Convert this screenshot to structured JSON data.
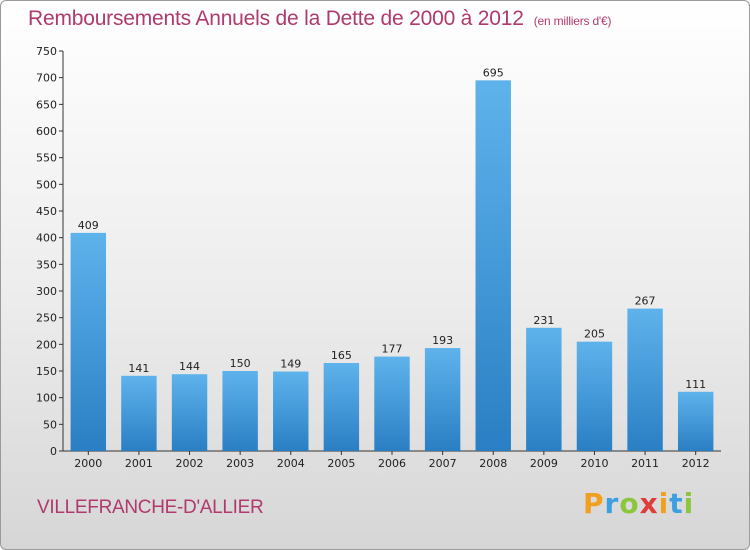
{
  "header": {
    "title": "Remboursements Annuels de la Dette de 2000 à 2012",
    "subtitle": "(en milliers d'€)"
  },
  "footer": {
    "location": "VILLEFRANCHE-D'ALLIER",
    "brand": {
      "letters": [
        "P",
        "r",
        "o",
        "x",
        "i",
        "t",
        "i"
      ],
      "colors": [
        "#f0a020",
        "#3ca0e0",
        "#8cc63f",
        "#e03c3c",
        "#f0a020",
        "#3ca0e0",
        "#8cc63f"
      ]
    }
  },
  "colors": {
    "bar_light": "#5eb3ec",
    "bar_dark": "#2a7fc4",
    "text_accent": "#b03a6e"
  },
  "chart_data": {
    "type": "bar",
    "title": "Remboursements Annuels de la Dette de 2000 à 2012",
    "subtitle": "(en milliers d'€)",
    "xlabel": "",
    "ylabel": "",
    "categories": [
      "2000",
      "2001",
      "2002",
      "2003",
      "2004",
      "2005",
      "2006",
      "2007",
      "2008",
      "2009",
      "2010",
      "2011",
      "2012"
    ],
    "values": [
      409,
      141,
      144,
      150,
      149,
      165,
      177,
      193,
      695,
      231,
      205,
      267,
      111
    ],
    "ylim": [
      0,
      750
    ],
    "yticks": [
      0,
      50,
      100,
      150,
      200,
      250,
      300,
      350,
      400,
      450,
      500,
      550,
      600,
      650,
      700,
      750
    ],
    "grid": false,
    "legend": "none"
  }
}
